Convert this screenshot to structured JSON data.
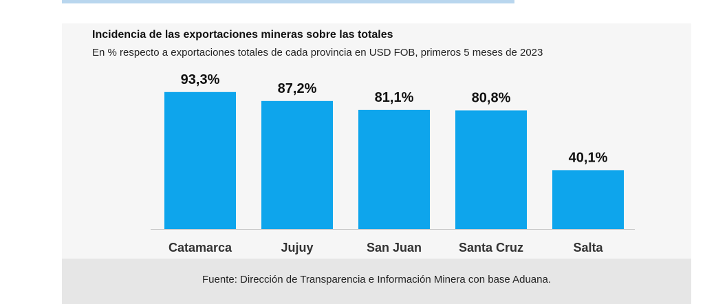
{
  "chart_data": {
    "type": "bar",
    "title": "Incidencia de las exportaciones mineras sobre las totales",
    "subtitle": "En % respecto a exportaciones totales de cada provincia en USD FOB, primeros 5 meses de 2023",
    "categories": [
      "Catamarca",
      "Jujuy",
      "San Juan",
      "Santa Cruz",
      "Salta"
    ],
    "values": [
      93.3,
      87.2,
      81.1,
      80.8,
      40.1
    ],
    "value_labels": [
      "93,3%",
      "87,2%",
      "81,1%",
      "80,8%",
      "40,1%"
    ],
    "ylim": [
      0,
      100
    ],
    "grid": false,
    "legend": "none",
    "bar_color": "#0ea5ec"
  },
  "footer": {
    "source": "Fuente: Dirección de Transparencia e Información Minera con base Aduana."
  }
}
